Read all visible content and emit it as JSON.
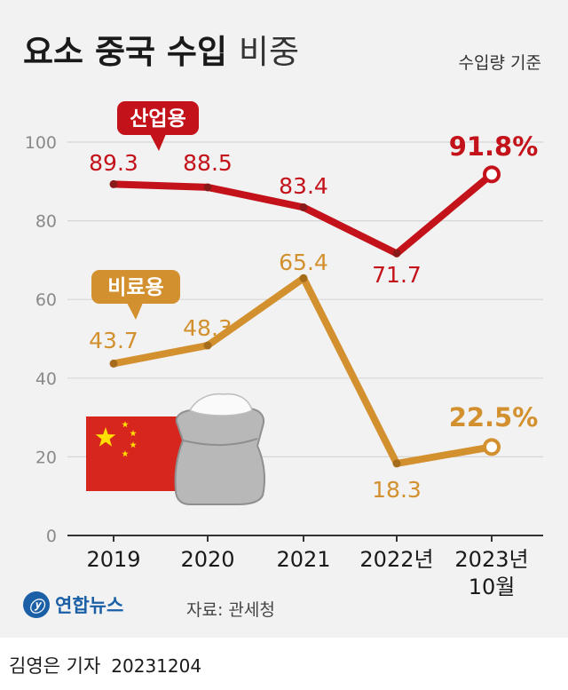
{
  "title": "요소 중국 수입",
  "title_suffix": "비중",
  "basis_note": "수입량 기준",
  "source": "자료: 관세청",
  "agency_logo": "연합뉴스",
  "credit": {
    "reporter": "김영은 기자",
    "date": "20231204"
  },
  "colors": {
    "industrial": "#c4121a",
    "fertilizer": "#d3902e",
    "grid": "#d6d6d6",
    "axis": "#333333"
  },
  "icons": [
    "china-flag-icon",
    "sack-icon",
    "yonhap-logo-icon"
  ],
  "chart_data": {
    "type": "line",
    "categories": [
      "2019",
      "2020",
      "2021",
      "2022년",
      "2023년\n10월"
    ],
    "ylim": [
      0,
      100
    ],
    "yticks": [
      0,
      20,
      40,
      60,
      80,
      100
    ],
    "grid": true,
    "unit": "%",
    "series": [
      {
        "name": "산업용",
        "values": [
          89.3,
          88.5,
          83.4,
          71.7,
          91.8
        ],
        "labels": [
          "89.3",
          "88.5",
          "83.4",
          "71.7",
          "91.8%"
        ]
      },
      {
        "name": "비료용",
        "values": [
          43.7,
          48.3,
          65.4,
          18.3,
          22.5
        ],
        "labels": [
          "43.7",
          "48.3",
          "65.4",
          "18.3",
          "22.5%"
        ]
      }
    ]
  }
}
